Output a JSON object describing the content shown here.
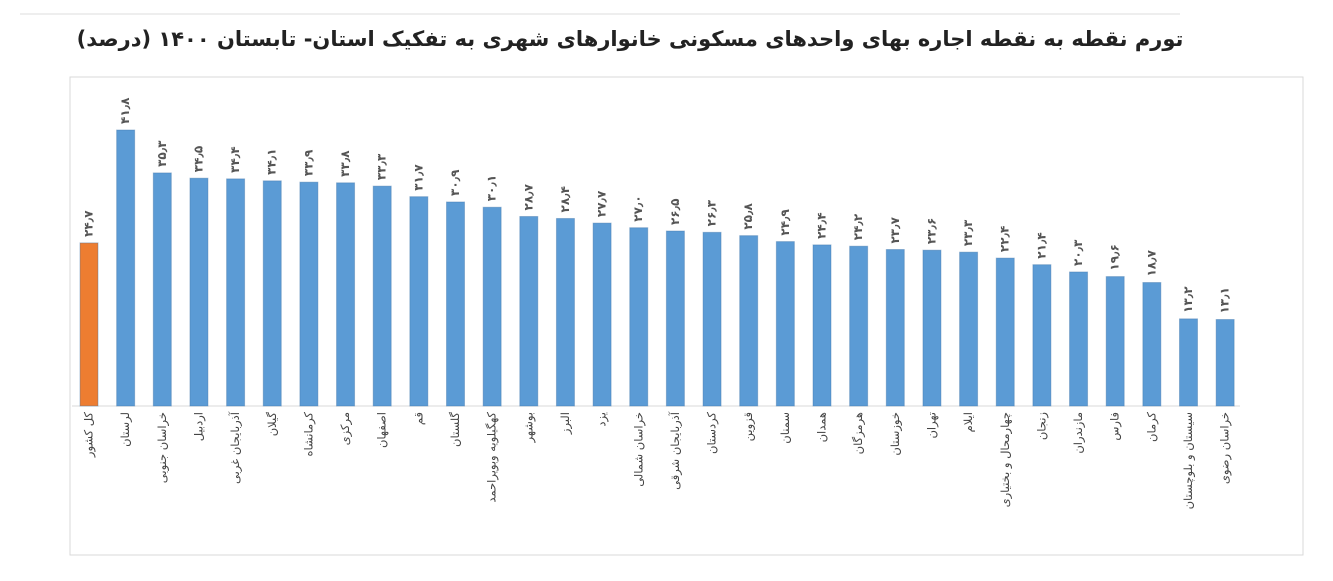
{
  "chart_data": {
    "type": "bar",
    "title": "تورم نقطه به نقطه اجاره بهای واحدهای مسکونی خانوارهای شهری به تفکیک استان- تابستان ۱۴۰۰ (درصد)",
    "categories": [
      "کل کشور",
      "لرستان",
      "خراسان جنوبی",
      "اردبیل",
      "آذربایجان غربی",
      "گیلان",
      "کرمانشاه",
      "مرکزی",
      "اصفهان",
      "قم",
      "گلستان",
      "کهگیلویه وبویراحمد",
      "بوشهر",
      "البرز",
      "یزد",
      "خراسان شمالی",
      "آذربایجان شرقی",
      "کردستان",
      "قزوین",
      "سمنان",
      "همدان",
      "هرمزگان",
      "خوزستان",
      "تهران",
      "ایلام",
      "چهارمحال و بختیاری",
      "زنجان",
      "مازندران",
      "فارس",
      "کرمان",
      "سیستان و بلوچستان",
      "خراسان رضوی"
    ],
    "values": [
      24.7,
      41.8,
      35.3,
      34.5,
      34.4,
      34.1,
      33.9,
      33.8,
      33.3,
      31.7,
      30.9,
      30.1,
      28.7,
      28.4,
      27.7,
      27.0,
      26.5,
      26.3,
      25.8,
      24.9,
      24.4,
      24.2,
      23.7,
      23.6,
      23.3,
      22.4,
      21.4,
      20.3,
      19.6,
      18.7,
      13.2,
      13.1
    ],
    "value_labels": [
      "۲۴٫۷",
      "۴۱٫۸",
      "۳۵٫۳",
      "۳۴٫۵",
      "۳۴٫۴",
      "۳۴٫۱",
      "۳۳٫۹",
      "۳۳٫۸",
      "۳۳٫۳",
      "۳۱٫۷",
      "۳۰٫۹",
      "۳۰٫۱",
      "۲۸٫۷",
      "۲۸٫۴",
      "۲۷٫۷",
      "۲۷٫۰",
      "۲۶٫۵",
      "۲۶٫۳",
      "۲۵٫۸",
      "۲۴٫۹",
      "۲۴٫۴",
      "۲۴٫۲",
      "۲۳٫۷",
      "۲۳٫۶",
      "۲۳٫۳",
      "۲۲٫۴",
      "۲۱٫۴",
      "۲۰٫۳",
      "۱۹٫۶",
      "۱۸٫۷",
      "۱۳٫۲",
      "۱۳٫۱"
    ],
    "colors": [
      "#ed7d31",
      "#5b9bd5",
      "#5b9bd5",
      "#5b9bd5",
      "#5b9bd5",
      "#5b9bd5",
      "#5b9bd5",
      "#5b9bd5",
      "#5b9bd5",
      "#5b9bd5",
      "#5b9bd5",
      "#5b9bd5",
      "#5b9bd5",
      "#5b9bd5",
      "#5b9bd5",
      "#5b9bd5",
      "#5b9bd5",
      "#5b9bd5",
      "#5b9bd5",
      "#5b9bd5",
      "#5b9bd5",
      "#5b9bd5",
      "#5b9bd5",
      "#5b9bd5",
      "#5b9bd5",
      "#5b9bd5",
      "#5b9bd5",
      "#5b9bd5",
      "#5b9bd5",
      "#5b9bd5",
      "#5b9bd5",
      "#5b9bd5"
    ]
  }
}
